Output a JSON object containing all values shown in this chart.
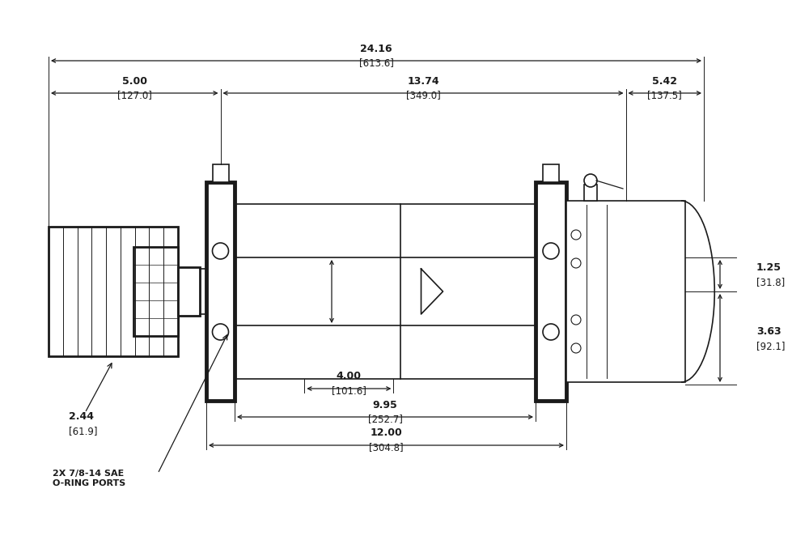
{
  "bg_color": "#ffffff",
  "line_color": "#1a1a1a",
  "font_size_dim": 9,
  "font_size_label": 8,
  "dims": {
    "total_width": {
      "val": "24.16",
      "metric": "[613.6]"
    },
    "left_section": {
      "val": "5.00",
      "metric": "[127.0]"
    },
    "mid_section": {
      "val": "13.74",
      "metric": "[349.0]"
    },
    "right_section": {
      "val": "5.42",
      "metric": "[137.5]"
    },
    "drum_inner": {
      "val": "4.00",
      "metric": "[101.6]"
    },
    "drum_mid": {
      "val": "9.95",
      "metric": "[252.7]"
    },
    "drum_total": {
      "val": "12.00",
      "metric": "[304.8]"
    },
    "motor_upper": {
      "val": "1.25",
      "metric": "[31.8]"
    },
    "motor_lower": {
      "val": "3.63",
      "metric": "[92.1]"
    },
    "shaft": {
      "val": "2.44",
      "metric": "[61.9]"
    }
  },
  "annotation": "2X 7/8-14 SAE\nO-RING PORTS"
}
